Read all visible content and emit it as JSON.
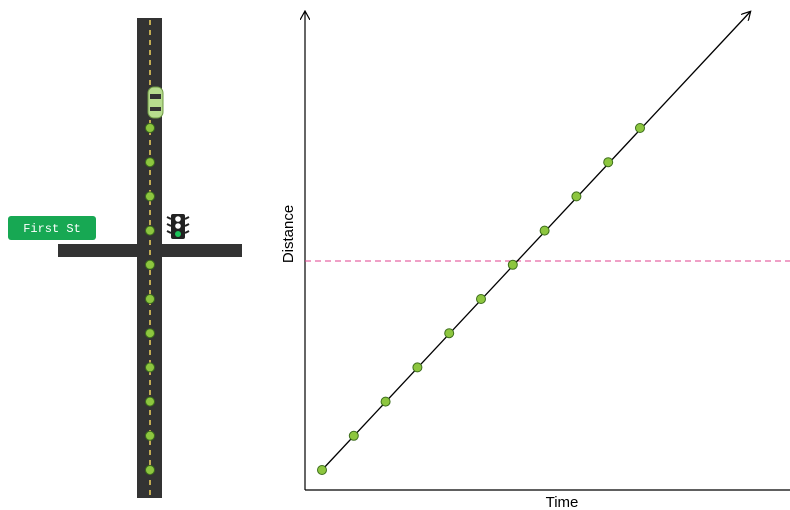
{
  "street_sign": {
    "label": "First St"
  },
  "graph": {
    "y_label": "Distance",
    "x_label": "Time"
  }
}
